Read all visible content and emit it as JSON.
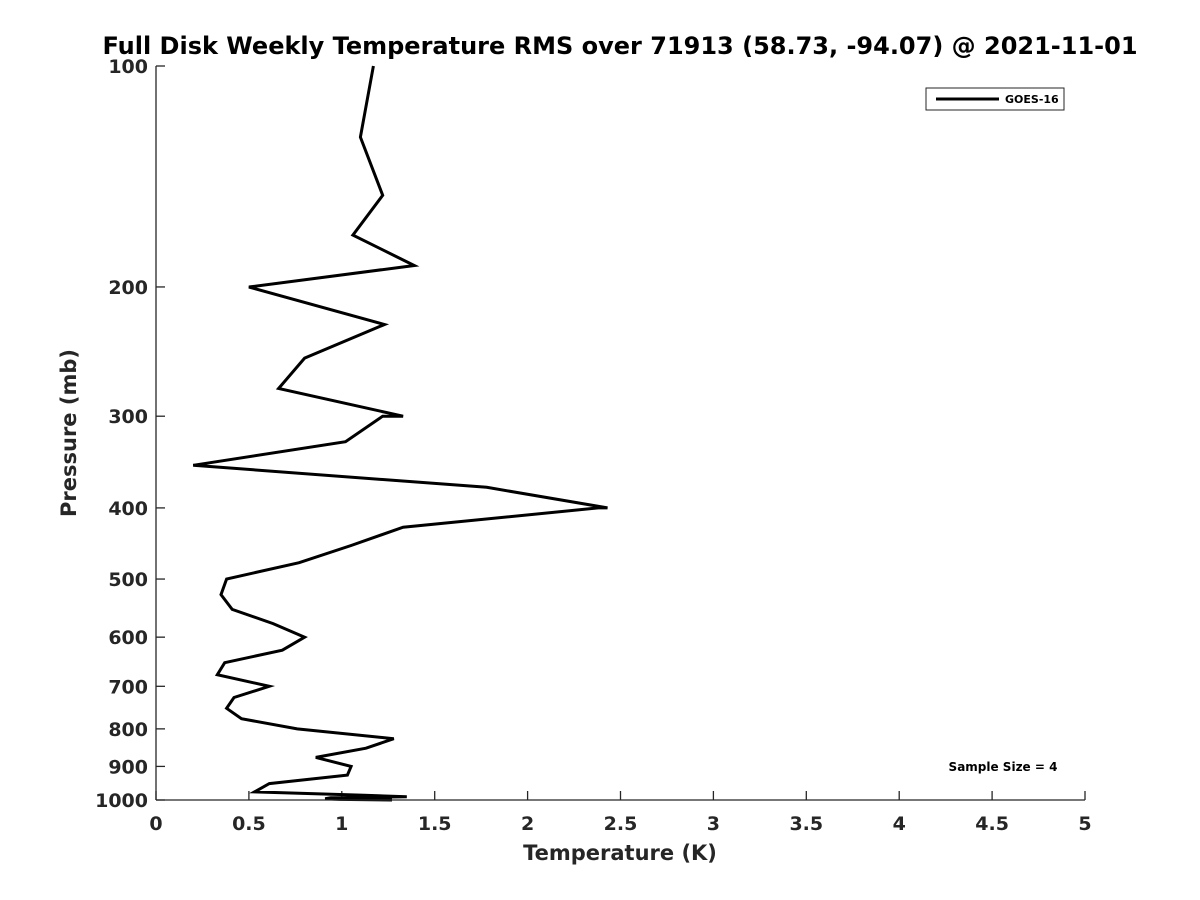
{
  "chart_data": {
    "type": "line",
    "title": "Full Disk Weekly Temperature RMS over 71913 (58.73, -94.07) @ 2021-11-01",
    "xlabel": "Temperature (K)",
    "ylabel": "Pressure (mb)",
    "xlim": [
      0,
      5
    ],
    "ylim": [
      100,
      1000
    ],
    "yscale": "log",
    "y_reversed": true,
    "xticks": [
      0,
      0.5,
      1,
      1.5,
      2,
      2.5,
      3,
      3.5,
      4,
      4.5,
      5
    ],
    "xtick_labels": [
      "0",
      "0.5",
      "1",
      "1.5",
      "2",
      "2.5",
      "3",
      "3.5",
      "4",
      "4.5",
      "5"
    ],
    "yticks": [
      100,
      200,
      300,
      400,
      500,
      600,
      700,
      800,
      900,
      1000
    ],
    "ytick_labels": [
      "100",
      "200",
      "300",
      "400",
      "500",
      "600",
      "700",
      "800",
      "900",
      "1000"
    ],
    "grid": false,
    "legend_position": "top-right",
    "series": [
      {
        "name": "GOES-16",
        "color": "#000000",
        "points": [
          [
            1.17,
            100
          ],
          [
            1.1,
            125
          ],
          [
            1.22,
            150
          ],
          [
            1.06,
            170
          ],
          [
            1.39,
            187
          ],
          [
            0.5,
            200
          ],
          [
            1.23,
            225
          ],
          [
            0.8,
            250
          ],
          [
            0.66,
            275
          ],
          [
            1.33,
            300
          ],
          [
            1.22,
            300
          ],
          [
            1.02,
            325
          ],
          [
            0.2,
            350
          ],
          [
            1.78,
            375
          ],
          [
            2.43,
            400
          ],
          [
            2.38,
            400
          ],
          [
            1.33,
            425
          ],
          [
            1.05,
            450
          ],
          [
            0.77,
            475
          ],
          [
            0.38,
            500
          ],
          [
            0.35,
            525
          ],
          [
            0.41,
            550
          ],
          [
            0.63,
            575
          ],
          [
            0.8,
            600
          ],
          [
            0.68,
            625
          ],
          [
            0.37,
            650
          ],
          [
            0.33,
            675
          ],
          [
            0.61,
            700
          ],
          [
            0.42,
            725
          ],
          [
            0.38,
            750
          ],
          [
            0.46,
            775
          ],
          [
            0.76,
            800
          ],
          [
            1.28,
            825
          ],
          [
            1.13,
            850
          ],
          [
            0.86,
            875
          ],
          [
            1.05,
            900
          ],
          [
            1.03,
            925
          ],
          [
            0.61,
            950
          ],
          [
            0.53,
            975
          ],
          [
            1.12,
            985
          ],
          [
            1.35,
            990
          ],
          [
            0.94,
            993
          ],
          [
            0.91,
            996
          ],
          [
            0.99,
            998
          ],
          [
            1.27,
            1000
          ]
        ]
      }
    ],
    "annotation": "Sample Size = 4"
  }
}
